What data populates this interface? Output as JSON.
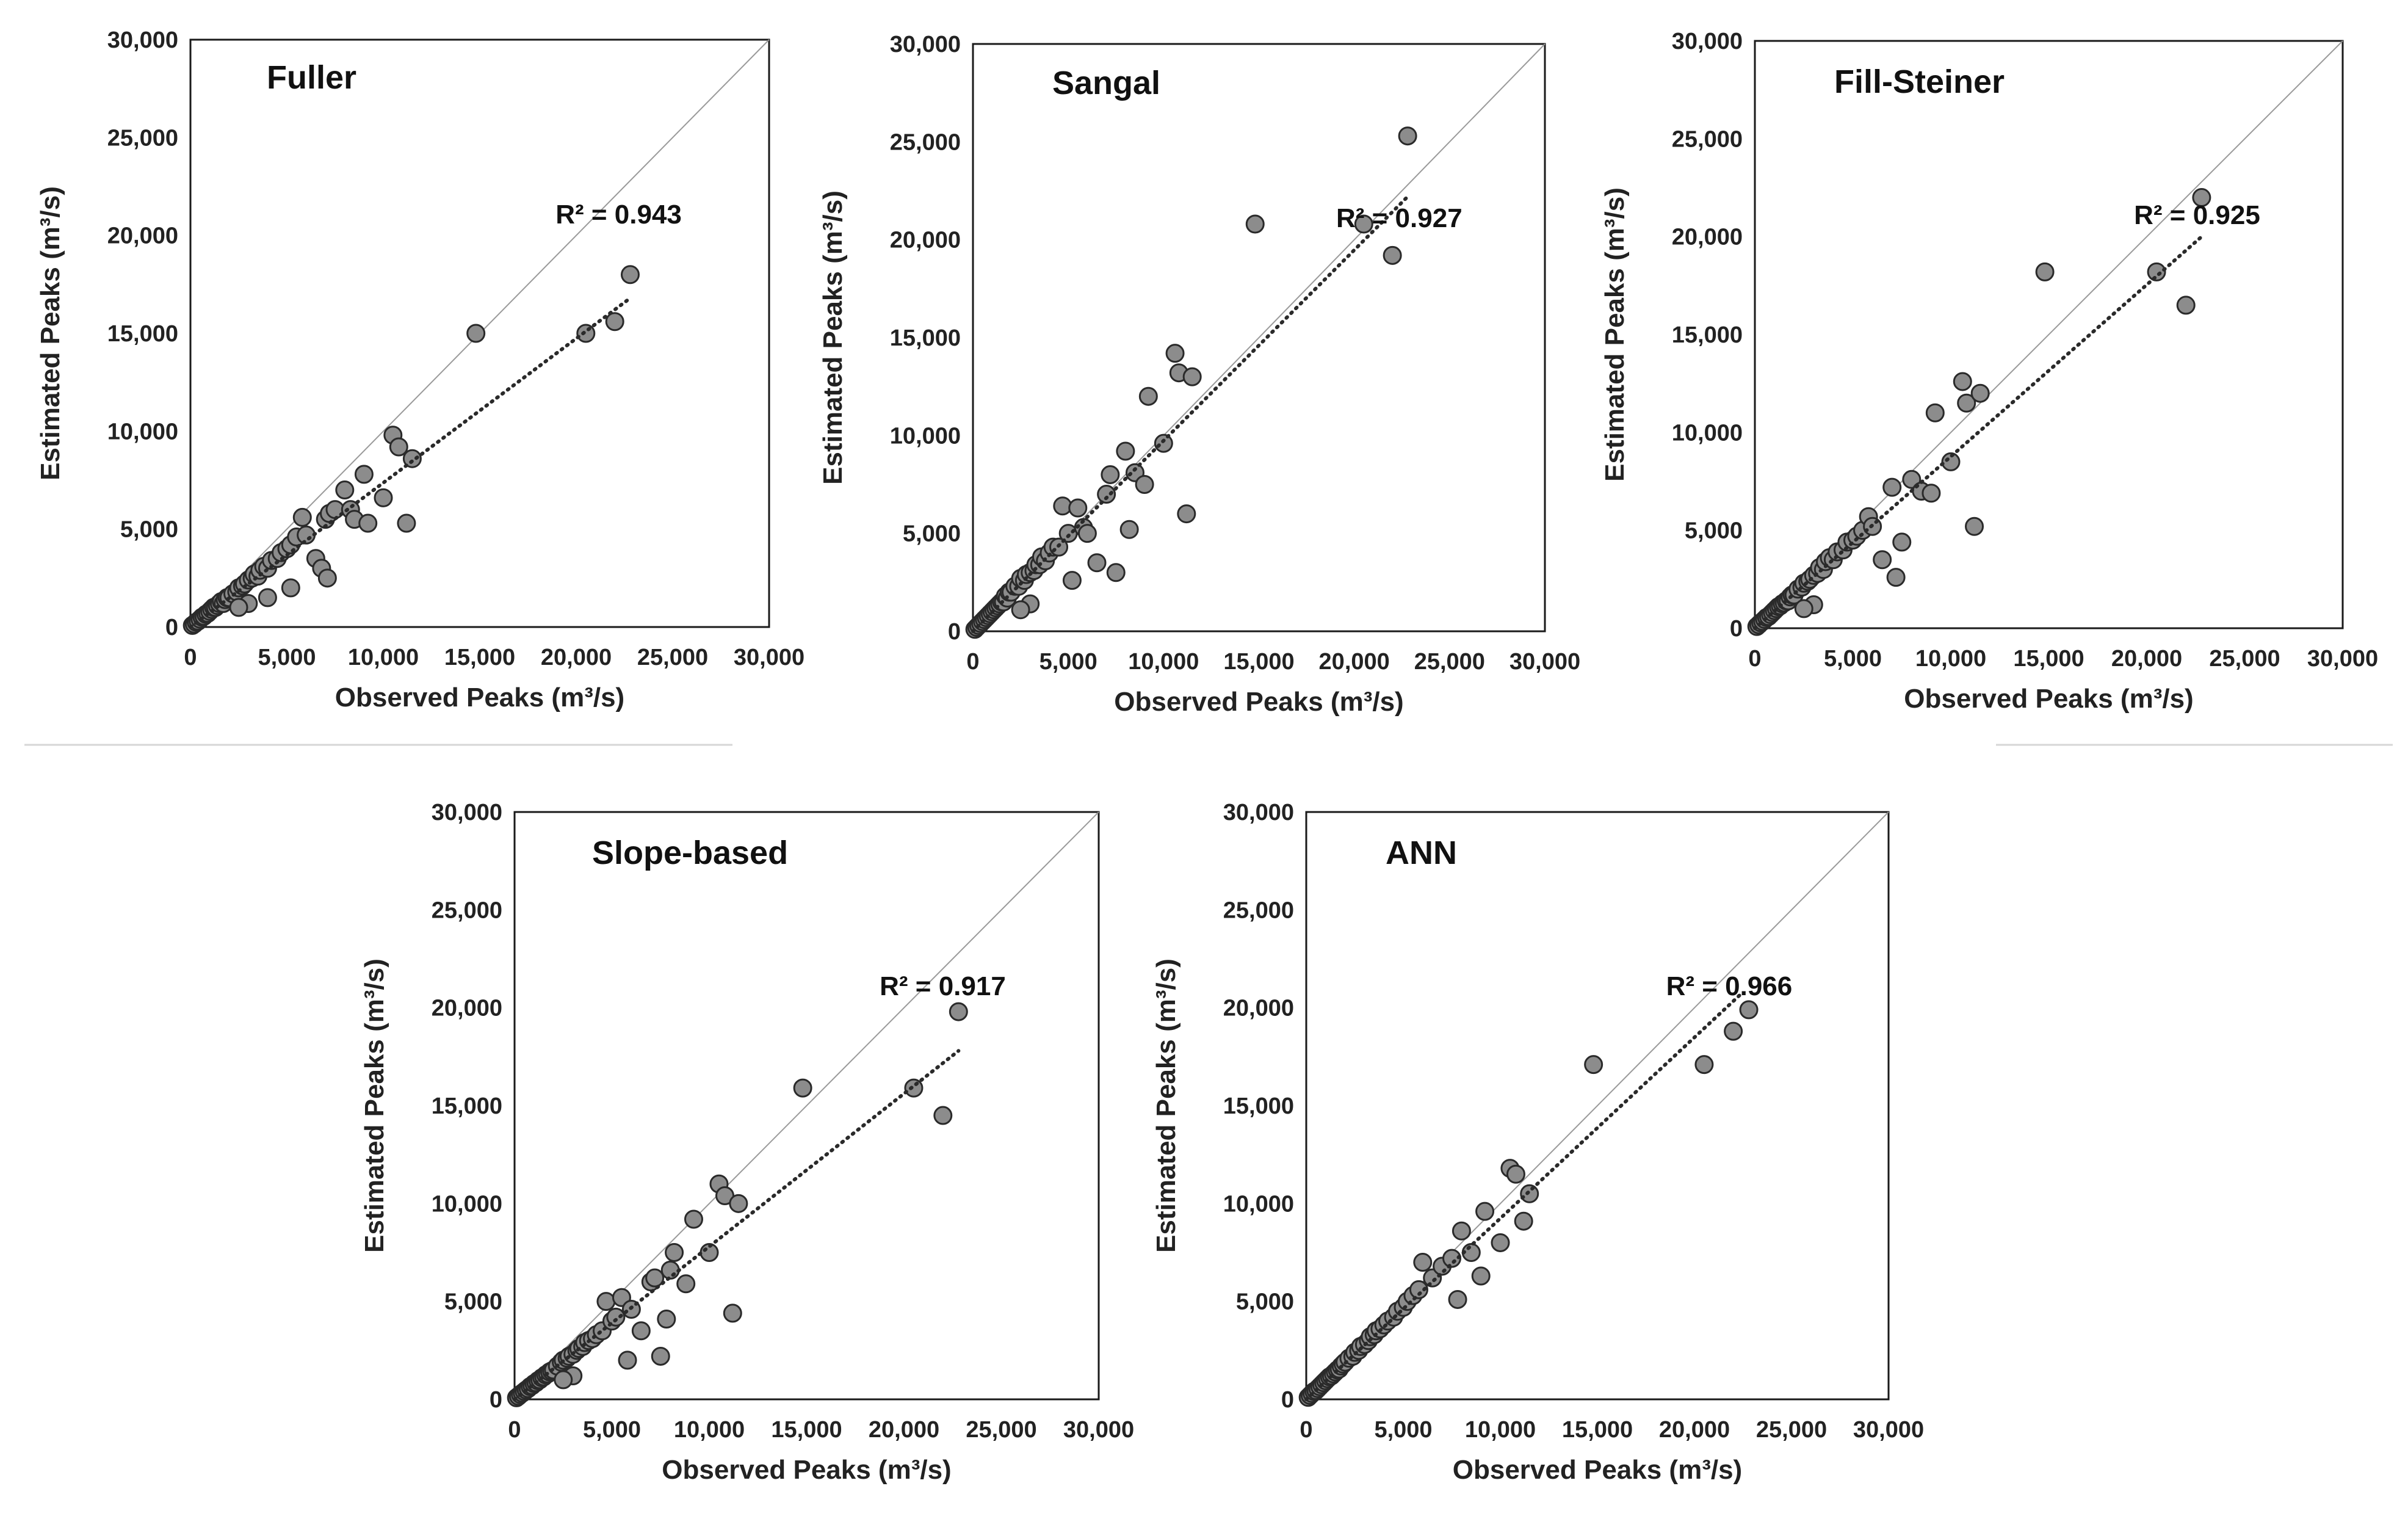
{
  "figure": {
    "colors": {
      "point_fill": "#8c8c8c",
      "point_stroke": "#2a2a2a",
      "trend": "#2a2a2a",
      "identity": "#9a9a9a",
      "frame": "#1a1a1a",
      "background": "#ffffff"
    }
  },
  "chart_data": [
    {
      "type": "scatter",
      "title": "Fuller",
      "xlabel": "Observed Peaks (m³/s)",
      "ylabel": "Estimated Peaks (m³/s)",
      "xlim": [
        0,
        30000
      ],
      "ylim": [
        0,
        30000
      ],
      "xticks": [
        "0",
        "5,000",
        "10,000",
        "15,000",
        "20,000",
        "25,000",
        "30,000"
      ],
      "yticks": [
        "0",
        "5,000",
        "10,000",
        "15,000",
        "20,000",
        "25,000",
        "30,000"
      ],
      "r2_label": "R² = 0.943",
      "trendline": {
        "x": [
          0,
          22800
        ],
        "y": [
          0,
          16800
        ]
      },
      "points": [
        [
          100,
          80
        ],
        [
          200,
          150
        ],
        [
          300,
          250
        ],
        [
          400,
          300
        ],
        [
          500,
          400
        ],
        [
          600,
          500
        ],
        [
          700,
          550
        ],
        [
          800,
          650
        ],
        [
          900,
          700
        ],
        [
          1000,
          800
        ],
        [
          1100,
          900
        ],
        [
          1200,
          1000
        ],
        [
          1300,
          1000
        ],
        [
          1400,
          1100
        ],
        [
          1500,
          1200
        ],
        [
          1600,
          1300
        ],
        [
          1700,
          1200
        ],
        [
          1800,
          1400
        ],
        [
          1900,
          1500
        ],
        [
          2000,
          1500
        ],
        [
          2200,
          1700
        ],
        [
          2400,
          1800
        ],
        [
          2500,
          2000
        ],
        [
          2700,
          2100
        ],
        [
          2800,
          2200
        ],
        [
          3000,
          2400
        ],
        [
          3200,
          2500
        ],
        [
          3300,
          2700
        ],
        [
          3500,
          2600
        ],
        [
          3600,
          2900
        ],
        [
          3800,
          3100
        ],
        [
          4000,
          3000
        ],
        [
          4200,
          3400
        ],
        [
          4500,
          3500
        ],
        [
          4700,
          3800
        ],
        [
          5000,
          4000
        ],
        [
          5200,
          4200
        ],
        [
          5500,
          4600
        ],
        [
          5800,
          5600
        ],
        [
          6000,
          4700
        ],
        [
          6500,
          3500
        ],
        [
          6800,
          3000
        ],
        [
          7000,
          5500
        ],
        [
          7200,
          5800
        ],
        [
          7500,
          6000
        ],
        [
          8000,
          7000
        ],
        [
          8300,
          6000
        ],
        [
          8500,
          5500
        ],
        [
          9000,
          7800
        ],
        [
          9200,
          5300
        ],
        [
          7100,
          2500
        ],
        [
          5200,
          2000
        ],
        [
          4000,
          1500
        ],
        [
          3000,
          1200
        ],
        [
          2500,
          1000
        ],
        [
          10000,
          6600
        ],
        [
          10500,
          9800
        ],
        [
          10800,
          9200
        ],
        [
          11200,
          5300
        ],
        [
          11500,
          8600
        ],
        [
          14800,
          15000
        ],
        [
          20500,
          15000
        ],
        [
          22000,
          15600
        ],
        [
          22800,
          18000
        ]
      ]
    },
    {
      "type": "scatter",
      "title": "Sangal",
      "xlabel": "Observed Peaks (m³/s)",
      "ylabel": "Estimated Peaks (m³/s)",
      "xlim": [
        0,
        30000
      ],
      "ylim": [
        0,
        30000
      ],
      "xticks": [
        "0",
        "5,000",
        "10,000",
        "15,000",
        "20,000",
        "25,000",
        "30,000"
      ],
      "yticks": [
        "0",
        "5,000",
        "10,000",
        "15,000",
        "20,000",
        "25,000",
        "30,000"
      ],
      "r2_label": "R² = 0.927",
      "trendline": {
        "x": [
          0,
          22800
        ],
        "y": [
          0,
          22200
        ]
      },
      "points": [
        [
          100,
          100
        ],
        [
          200,
          200
        ],
        [
          300,
          300
        ],
        [
          400,
          400
        ],
        [
          500,
          500
        ],
        [
          600,
          600
        ],
        [
          700,
          700
        ],
        [
          800,
          800
        ],
        [
          900,
          900
        ],
        [
          1000,
          1000
        ],
        [
          1100,
          1100
        ],
        [
          1200,
          1200
        ],
        [
          1300,
          1300
        ],
        [
          1400,
          1400
        ],
        [
          1500,
          1500
        ],
        [
          1600,
          1500
        ],
        [
          1700,
          1800
        ],
        [
          1800,
          1700
        ],
        [
          1900,
          2000
        ],
        [
          2000,
          2000
        ],
        [
          2200,
          2300
        ],
        [
          2400,
          2300
        ],
        [
          2500,
          2700
        ],
        [
          2700,
          2600
        ],
        [
          2800,
          2900
        ],
        [
          3000,
          3000
        ],
        [
          3200,
          3100
        ],
        [
          3300,
          3400
        ],
        [
          3500,
          3400
        ],
        [
          3600,
          3800
        ],
        [
          3800,
          3600
        ],
        [
          4000,
          4000
        ],
        [
          4200,
          4300
        ],
        [
          4500,
          4300
        ],
        [
          4700,
          6400
        ],
        [
          5000,
          5000
        ],
        [
          5200,
          2600
        ],
        [
          5500,
          6300
        ],
        [
          5800,
          5300
        ],
        [
          6000,
          5000
        ],
        [
          6500,
          3500
        ],
        [
          7000,
          7000
        ],
        [
          7200,
          8000
        ],
        [
          7500,
          3000
        ],
        [
          8000,
          9200
        ],
        [
          8200,
          5200
        ],
        [
          8500,
          8100
        ],
        [
          9000,
          7500
        ],
        [
          9200,
          12000
        ],
        [
          10000,
          9600
        ],
        [
          10600,
          14200
        ],
        [
          10800,
          13200
        ],
        [
          11200,
          6000
        ],
        [
          11500,
          13000
        ],
        [
          3000,
          1400
        ],
        [
          2500,
          1100
        ],
        [
          14800,
          20800
        ],
        [
          20500,
          20800
        ],
        [
          22000,
          19200
        ],
        [
          22800,
          25300
        ]
      ]
    },
    {
      "type": "scatter",
      "title": "Fill-Steiner",
      "xlabel": "Observed Peaks (m³/s)",
      "ylabel": "Estimated Peaks (m³/s)",
      "xlim": [
        0,
        30000
      ],
      "ylim": [
        0,
        30000
      ],
      "xticks": [
        "0",
        "5,000",
        "10,000",
        "15,000",
        "20,000",
        "25,000",
        "30,000"
      ],
      "yticks": [
        "0",
        "5,000",
        "10,000",
        "15,000",
        "20,000",
        "25,000",
        "30,000"
      ],
      "r2_label": "R² = 0.925",
      "trendline": {
        "x": [
          0,
          22800
        ],
        "y": [
          0,
          20000
        ]
      },
      "points": [
        [
          100,
          90
        ],
        [
          200,
          180
        ],
        [
          300,
          280
        ],
        [
          400,
          350
        ],
        [
          500,
          450
        ],
        [
          600,
          550
        ],
        [
          700,
          600
        ],
        [
          800,
          700
        ],
        [
          900,
          800
        ],
        [
          1000,
          900
        ],
        [
          1100,
          1000
        ],
        [
          1200,
          1100
        ],
        [
          1300,
          1150
        ],
        [
          1400,
          1250
        ],
        [
          1500,
          1300
        ],
        [
          1600,
          1400
        ],
        [
          1700,
          1400
        ],
        [
          1800,
          1600
        ],
        [
          1900,
          1700
        ],
        [
          2000,
          1700
        ],
        [
          2200,
          2000
        ],
        [
          2400,
          2100
        ],
        [
          2500,
          2300
        ],
        [
          2700,
          2400
        ],
        [
          2800,
          2500
        ],
        [
          3000,
          2700
        ],
        [
          3200,
          2800
        ],
        [
          3300,
          3100
        ],
        [
          3500,
          3000
        ],
        [
          3600,
          3400
        ],
        [
          3800,
          3600
        ],
        [
          4000,
          3500
        ],
        [
          4200,
          3900
        ],
        [
          4500,
          4000
        ],
        [
          4700,
          4400
        ],
        [
          5000,
          4500
        ],
        [
          5200,
          4700
        ],
        [
          5500,
          5000
        ],
        [
          5800,
          5700
        ],
        [
          6000,
          5200
        ],
        [
          6500,
          3500
        ],
        [
          7000,
          7200
        ],
        [
          7200,
          2600
        ],
        [
          7500,
          4400
        ],
        [
          8000,
          7600
        ],
        [
          8500,
          7000
        ],
        [
          9000,
          6900
        ],
        [
          9200,
          11000
        ],
        [
          10000,
          8500
        ],
        [
          10600,
          12600
        ],
        [
          10800,
          11500
        ],
        [
          11200,
          5200
        ],
        [
          11500,
          12000
        ],
        [
          3000,
          1200
        ],
        [
          2500,
          1000
        ],
        [
          14800,
          18200
        ],
        [
          20500,
          18200
        ],
        [
          22000,
          16500
        ],
        [
          22800,
          22000
        ]
      ]
    },
    {
      "type": "scatter",
      "title": "Slope-based",
      "xlabel": "Observed Peaks (m³/s)",
      "ylabel": "Estimated Peaks (m³/s)",
      "xlim": [
        0,
        30000
      ],
      "ylim": [
        0,
        30000
      ],
      "xticks": [
        "0",
        "5,000",
        "10,000",
        "15,000",
        "20,000",
        "25,000",
        "30,000"
      ],
      "yticks": [
        "0",
        "5,000",
        "10,000",
        "15,000",
        "20,000",
        "25,000",
        "30,000"
      ],
      "r2_label": "R² = 0.917",
      "trendline": {
        "x": [
          0,
          22800
        ],
        "y": [
          0,
          17800
        ]
      },
      "points": [
        [
          100,
          80
        ],
        [
          200,
          160
        ],
        [
          300,
          250
        ],
        [
          400,
          320
        ],
        [
          500,
          400
        ],
        [
          600,
          480
        ],
        [
          700,
          550
        ],
        [
          800,
          650
        ],
        [
          900,
          700
        ],
        [
          1000,
          800
        ],
        [
          1100,
          850
        ],
        [
          1200,
          950
        ],
        [
          1300,
          1000
        ],
        [
          1400,
          1100
        ],
        [
          1500,
          1150
        ],
        [
          1600,
          1250
        ],
        [
          1700,
          1300
        ],
        [
          1800,
          1400
        ],
        [
          1900,
          1450
        ],
        [
          2000,
          1500
        ],
        [
          2200,
          1700
        ],
        [
          2400,
          1900
        ],
        [
          2500,
          2000
        ],
        [
          2700,
          2100
        ],
        [
          2800,
          2200
        ],
        [
          3000,
          2300
        ],
        [
          3200,
          2500
        ],
        [
          3300,
          2600
        ],
        [
          3500,
          2700
        ],
        [
          3600,
          2900
        ],
        [
          3800,
          3000
        ],
        [
          4000,
          3100
        ],
        [
          4200,
          3300
        ],
        [
          4500,
          3500
        ],
        [
          4700,
          5000
        ],
        [
          5000,
          4000
        ],
        [
          5200,
          4200
        ],
        [
          5500,
          5200
        ],
        [
          5800,
          2000
        ],
        [
          6000,
          4600
        ],
        [
          6500,
          3500
        ],
        [
          7000,
          6000
        ],
        [
          7200,
          6200
        ],
        [
          7500,
          2200
        ],
        [
          7800,
          4100
        ],
        [
          8000,
          6600
        ],
        [
          8200,
          7500
        ],
        [
          8800,
          5900
        ],
        [
          9200,
          9200
        ],
        [
          10000,
          7500
        ],
        [
          10500,
          11000
        ],
        [
          10800,
          10400
        ],
        [
          11200,
          4400
        ],
        [
          11500,
          10000
        ],
        [
          3000,
          1200
        ],
        [
          2500,
          1000
        ],
        [
          14800,
          15900
        ],
        [
          20500,
          15900
        ],
        [
          22000,
          14500
        ],
        [
          22800,
          19800
        ]
      ]
    },
    {
      "type": "scatter",
      "title": "ANN",
      "xlabel": "Observed Peaks (m³/s)",
      "ylabel": "Estimated Peaks (m³/s)",
      "xlim": [
        0,
        30000
      ],
      "ylim": [
        0,
        30000
      ],
      "xticks": [
        "0",
        "5,000",
        "10,000",
        "15,000",
        "20,000",
        "25,000",
        "30,000"
      ],
      "yticks": [
        "0",
        "5,000",
        "10,000",
        "15,000",
        "20,000",
        "25,000",
        "30,000"
      ],
      "r2_label": "R² = 0.966",
      "trendline": {
        "x": [
          0,
          22500
        ],
        "y": [
          0,
          20800
        ]
      },
      "points": [
        [
          100,
          100
        ],
        [
          200,
          200
        ],
        [
          300,
          300
        ],
        [
          400,
          400
        ],
        [
          500,
          450
        ],
        [
          600,
          550
        ],
        [
          700,
          650
        ],
        [
          800,
          750
        ],
        [
          900,
          850
        ],
        [
          1000,
          950
        ],
        [
          1100,
          1050
        ],
        [
          1200,
          1150
        ],
        [
          1300,
          1200
        ],
        [
          1400,
          1300
        ],
        [
          1500,
          1400
        ],
        [
          1600,
          1500
        ],
        [
          1700,
          1550
        ],
        [
          1800,
          1700
        ],
        [
          1900,
          1800
        ],
        [
          2000,
          1900
        ],
        [
          2200,
          2100
        ],
        [
          2400,
          2200
        ],
        [
          2500,
          2400
        ],
        [
          2700,
          2500
        ],
        [
          2800,
          2700
        ],
        [
          3000,
          2800
        ],
        [
          3200,
          3000
        ],
        [
          3300,
          3200
        ],
        [
          3500,
          3300
        ],
        [
          3600,
          3500
        ],
        [
          3800,
          3600
        ],
        [
          4000,
          3800
        ],
        [
          4200,
          4000
        ],
        [
          4500,
          4200
        ],
        [
          4700,
          4500
        ],
        [
          5000,
          4700
        ],
        [
          5200,
          5000
        ],
        [
          5500,
          5300
        ],
        [
          5800,
          5600
        ],
        [
          6000,
          7000
        ],
        [
          6500,
          6200
        ],
        [
          7000,
          6800
        ],
        [
          7500,
          7200
        ],
        [
          7800,
          5100
        ],
        [
          8000,
          8600
        ],
        [
          8500,
          7500
        ],
        [
          9000,
          6300
        ],
        [
          9200,
          9600
        ],
        [
          10000,
          8000
        ],
        [
          10500,
          11800
        ],
        [
          10800,
          11500
        ],
        [
          11200,
          9100
        ],
        [
          11500,
          10500
        ],
        [
          14800,
          17100
        ],
        [
          20500,
          17100
        ],
        [
          22000,
          18800
        ],
        [
          22800,
          19900
        ]
      ]
    }
  ]
}
